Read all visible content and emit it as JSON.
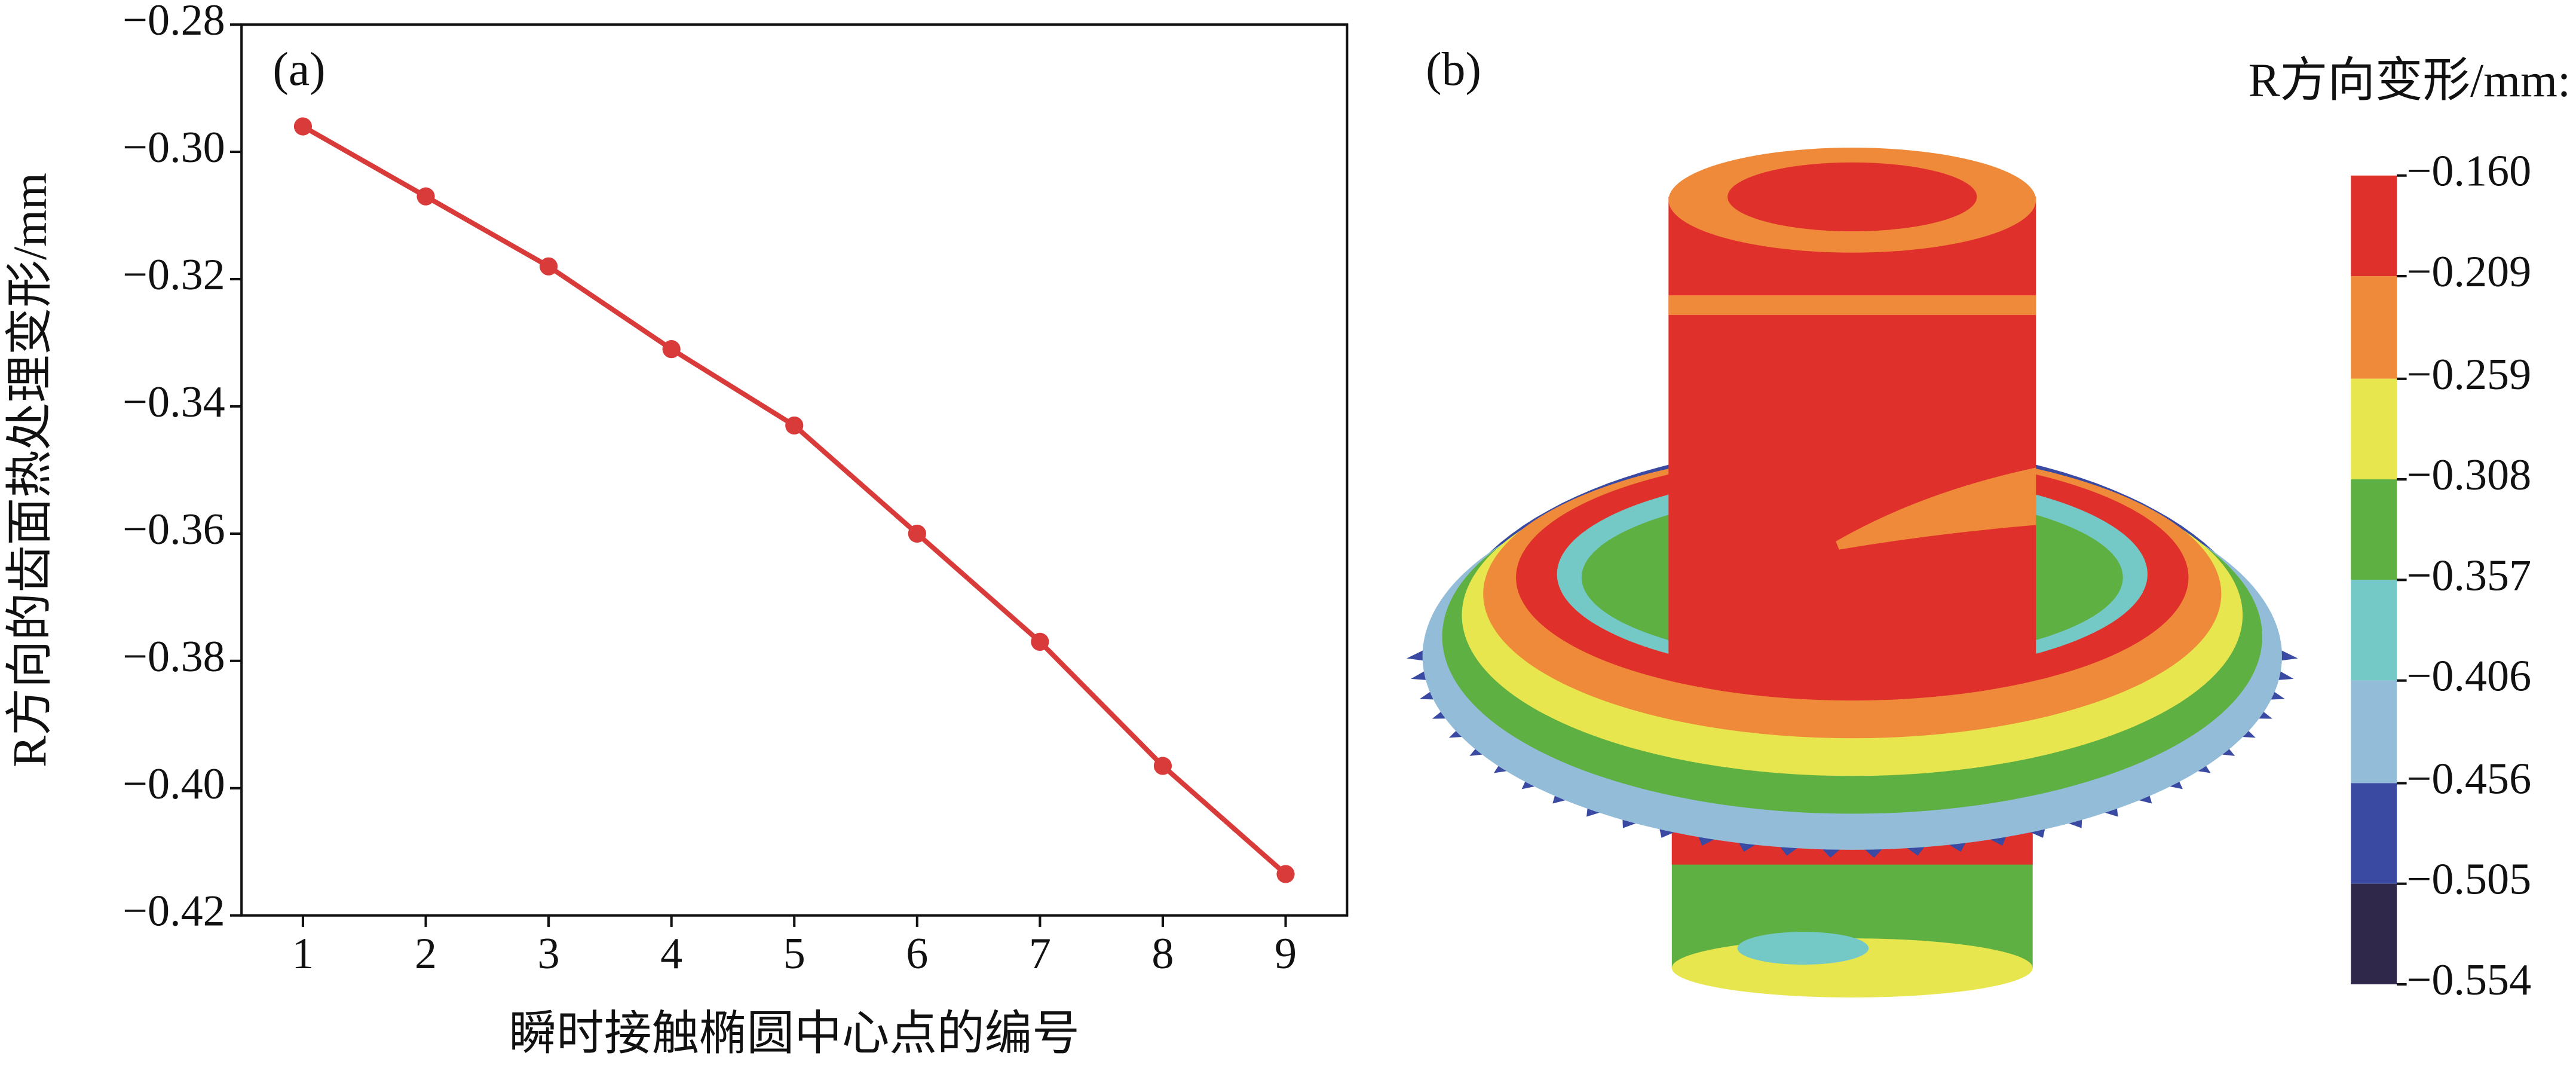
{
  "chart_data": [
    {
      "type": "line",
      "panel_label": "(a)",
      "x_label": "瞬时接触椭圆中心点的编号",
      "y_label": "R方向的齿面热处理变形/mm",
      "x": [
        1,
        2,
        3,
        4,
        5,
        6,
        7,
        8,
        9
      ],
      "series": [
        {
          "color": "#d93a3a",
          "values": [
            -0.296,
            -0.307,
            -0.318,
            -0.331,
            -0.343,
            -0.36,
            -0.377,
            -0.3965,
            -0.4135
          ]
        }
      ],
      "xlim": [
        0.5,
        9.5
      ],
      "xticks": [
        1,
        2,
        3,
        4,
        5,
        6,
        7,
        8,
        9
      ],
      "ylim": [
        -0.42,
        -0.28
      ],
      "yticks": [
        {
          "value": -0.42,
          "label": "−0.42"
        },
        {
          "value": -0.4,
          "label": "−0.40"
        },
        {
          "value": -0.38,
          "label": "−0.38"
        },
        {
          "value": -0.36,
          "label": "−0.36"
        },
        {
          "value": -0.34,
          "label": "−0.34"
        },
        {
          "value": -0.32,
          "label": "−0.32"
        },
        {
          "value": -0.3,
          "label": "−0.30"
        },
        {
          "value": -0.28,
          "label": "−0.28"
        }
      ]
    },
    {
      "type": "colorbar",
      "panel_label": "(b)",
      "title": "R方向变形/mm:",
      "clim": [
        -0.554,
        -0.16
      ],
      "colors": [
        "#e0302c",
        "#ef8a3a",
        "#e8e64e",
        "#5fb043",
        "#74c8c6",
        "#93bcd8",
        "#3a4aa2",
        "#30284a"
      ],
      "ticks": [
        {
          "value": -0.16,
          "label": "−0.160"
        },
        {
          "value": -0.209,
          "label": "−0.209"
        },
        {
          "value": -0.259,
          "label": "−0.259"
        },
        {
          "value": -0.308,
          "label": "−0.308"
        },
        {
          "value": -0.357,
          "label": "−0.357"
        },
        {
          "value": -0.406,
          "label": "−0.406"
        },
        {
          "value": -0.456,
          "label": "−0.456"
        },
        {
          "value": -0.505,
          "label": "−0.505"
        },
        {
          "value": -0.554,
          "label": "−0.554"
        }
      ]
    }
  ]
}
